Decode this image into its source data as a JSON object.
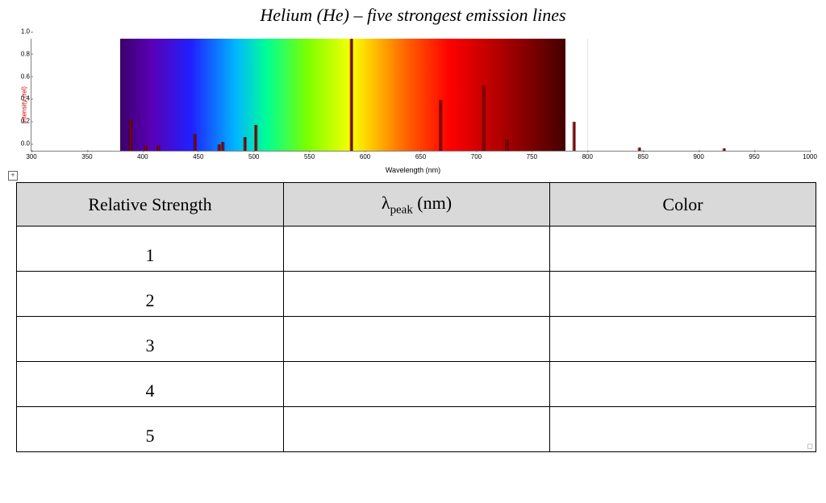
{
  "title": "Helium (He) – five strongest emission lines",
  "chart": {
    "type": "line-spectrum",
    "y_axis_label": "Intensity (rel)",
    "x_axis_label": "Wavelength (nm)",
    "xlim": [
      300,
      1000
    ],
    "ylim": [
      0.0,
      1.0
    ],
    "yticks": [
      0.0,
      0.2,
      0.4,
      0.6,
      0.8,
      1.0
    ],
    "xticks": [
      300,
      350,
      400,
      450,
      500,
      550,
      600,
      650,
      700,
      750,
      800,
      850,
      900,
      950,
      1000
    ],
    "background_color": "#ffffff",
    "axis_color": "#808080",
    "tick_font_size": 8,
    "label_font_size": 9,
    "y_label_color": "#cc0000",
    "spectrum_band": {
      "start_nm": 380,
      "end_nm": 780,
      "gradient_stops": [
        {
          "pct": 0,
          "color": "#3a006b"
        },
        {
          "pct": 7,
          "color": "#5a00b5"
        },
        {
          "pct": 16,
          "color": "#2020ff"
        },
        {
          "pct": 26,
          "color": "#00b7ff"
        },
        {
          "pct": 33,
          "color": "#00ff94"
        },
        {
          "pct": 42,
          "color": "#7bff00"
        },
        {
          "pct": 52,
          "color": "#f9ff00"
        },
        {
          "pct": 58,
          "color": "#ffb300"
        },
        {
          "pct": 65,
          "color": "#ff5a00"
        },
        {
          "pct": 74,
          "color": "#ff0000"
        },
        {
          "pct": 86,
          "color": "#aa0000"
        },
        {
          "pct": 100,
          "color": "#440000"
        }
      ]
    },
    "grid_vertical_at_nm": 800,
    "grid_color": "#e4e4e4",
    "peak_color": "#8b0000",
    "peaks": [
      {
        "nm": 389,
        "rel": 0.28
      },
      {
        "nm": 403,
        "rel": 0.05
      },
      {
        "nm": 414,
        "rel": 0.05
      },
      {
        "nm": 447,
        "rel": 0.15
      },
      {
        "nm": 469,
        "rel": 0.06
      },
      {
        "nm": 472,
        "rel": 0.08
      },
      {
        "nm": 492,
        "rel": 0.12
      },
      {
        "nm": 502,
        "rel": 0.23
      },
      {
        "nm": 588,
        "rel": 1.0
      },
      {
        "nm": 668,
        "rel": 0.45
      },
      {
        "nm": 707,
        "rel": 0.58
      },
      {
        "nm": 728,
        "rel": 0.1
      },
      {
        "nm": 788,
        "rel": 0.26
      },
      {
        "nm": 847,
        "rel": 0.03
      },
      {
        "nm": 923,
        "rel": 0.02
      }
    ]
  },
  "table": {
    "header_bg": "#d9d9d9",
    "border_color": "#000000",
    "columns": [
      {
        "key": "strength",
        "label_html": "Relative Strength"
      },
      {
        "key": "lambda",
        "label_html": "λ<span class=\"sub\">peak</span> (nm)"
      },
      {
        "key": "color",
        "label_html": "Color"
      }
    ],
    "column_widths_pct": [
      33.4,
      33.3,
      33.3
    ],
    "rows": [
      {
        "strength": "1",
        "lambda": "",
        "color": ""
      },
      {
        "strength": "2",
        "lambda": "",
        "color": ""
      },
      {
        "strength": "3",
        "lambda": "",
        "color": ""
      },
      {
        "strength": "4",
        "lambda": "",
        "color": ""
      },
      {
        "strength": "5",
        "lambda": "",
        "color": ""
      }
    ]
  },
  "expand_glyph": "+"
}
